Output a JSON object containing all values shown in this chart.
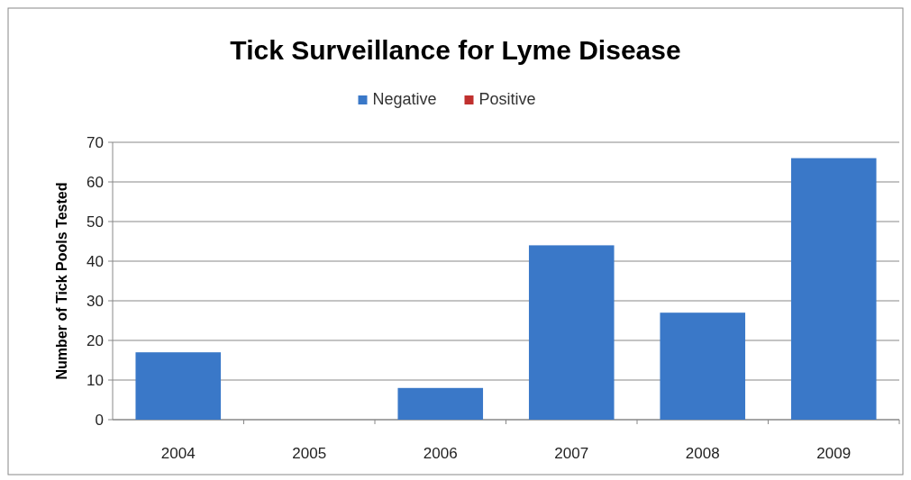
{
  "chart_data": {
    "type": "bar",
    "title": "Tick Surveillance for Lyme Disease",
    "ylabel": "Number of Tick Pools Tested",
    "categories": [
      "2004",
      "2005",
      "2006",
      "2007",
      "2008",
      "2009"
    ],
    "stacked": true,
    "series": [
      {
        "name": "Negative",
        "color": "#3a78c8",
        "values": [
          17,
          0,
          8,
          44,
          27,
          66
        ]
      },
      {
        "name": "Positive",
        "color": "#c0302e",
        "values": [
          0,
          0,
          0,
          0,
          0,
          0
        ]
      }
    ],
    "ylim": [
      0,
      70
    ],
    "yticks": [
      0,
      10,
      20,
      30,
      40,
      50,
      60,
      70
    ],
    "grid": "y",
    "legend": "top"
  }
}
